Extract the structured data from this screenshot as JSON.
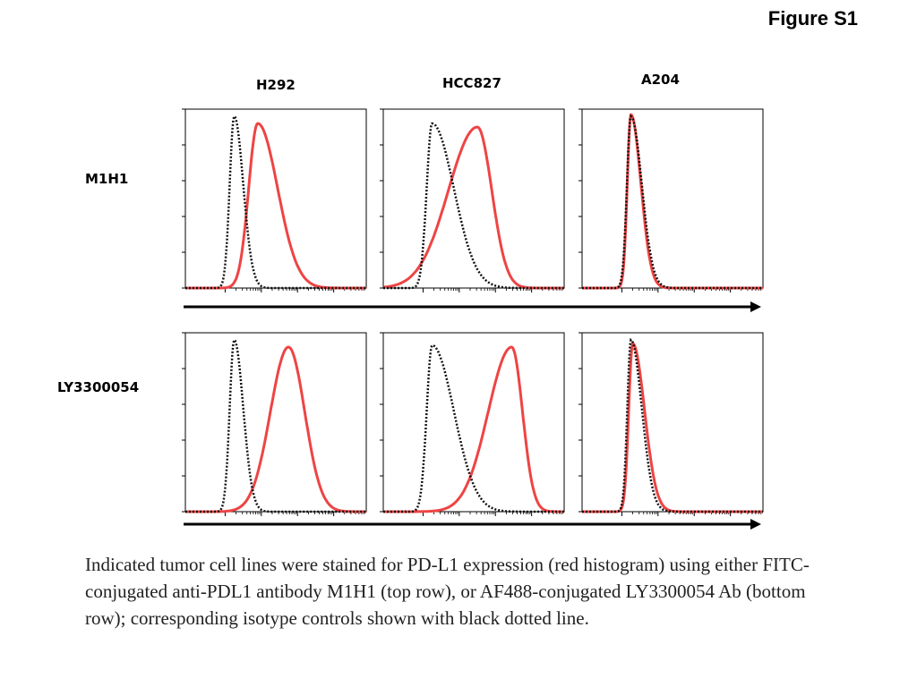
{
  "figure_title": "Figure S1",
  "caption": "Indicated tumor cell lines were stained for PD-L1 expression (red histogram) using either FITC-conjugated anti-PDL1 antibody M1H1 (top row), or AF488-conjugated LY3300054 Ab (bottom row); corresponding isotype controls shown with black dotted line.",
  "colors": {
    "stain": "#ee4444",
    "isotype": "#111111",
    "axis": "#000000"
  },
  "chart_data": {
    "type": "histogram-grid",
    "columns": [
      "H292",
      "HCC827",
      "A204"
    ],
    "rows": [
      "M1H1",
      "LY3300054"
    ],
    "x_scale": "log",
    "x_range": [
      0,
      1
    ],
    "y_range": [
      0,
      1
    ],
    "series_legend": {
      "stain": "PD-L1 expression (red histogram)",
      "isotype": "isotype controls (black dotted line)"
    },
    "panels": [
      {
        "row": "M1H1",
        "column": "H292",
        "isotype": {
          "peak_x": 0.27,
          "peak_y": 0.96,
          "sigma_left": 0.025,
          "sigma_right": 0.05
        },
        "stain": {
          "peak_x": 0.4,
          "peak_y": 0.92,
          "sigma_left": 0.05,
          "sigma_right": 0.11
        }
      },
      {
        "row": "M1H1",
        "column": "HCC827",
        "isotype": {
          "peak_x": 0.27,
          "peak_y": 0.92,
          "sigma_left": 0.03,
          "sigma_right": 0.12
        },
        "stain": {
          "peak_x": 0.52,
          "peak_y": 0.9,
          "sigma_left": 0.16,
          "sigma_right": 0.08
        }
      },
      {
        "row": "M1H1",
        "column": "A204",
        "isotype": {
          "peak_x": 0.27,
          "peak_y": 0.96,
          "sigma_left": 0.022,
          "sigma_right": 0.06
        },
        "stain": {
          "peak_x": 0.27,
          "peak_y": 0.97,
          "sigma_left": 0.02,
          "sigma_right": 0.055
        }
      },
      {
        "row": "LY3300054",
        "column": "H292",
        "isotype": {
          "peak_x": 0.27,
          "peak_y": 0.96,
          "sigma_left": 0.025,
          "sigma_right": 0.05
        },
        "stain": {
          "peak_x": 0.57,
          "peak_y": 0.92,
          "sigma_left": 0.1,
          "sigma_right": 0.09
        }
      },
      {
        "row": "LY3300054",
        "column": "HCC827",
        "isotype": {
          "peak_x": 0.27,
          "peak_y": 0.93,
          "sigma_left": 0.03,
          "sigma_right": 0.12
        },
        "stain": {
          "peak_x": 0.71,
          "peak_y": 0.92,
          "sigma_left": 0.13,
          "sigma_right": 0.06
        }
      },
      {
        "row": "LY3300054",
        "column": "A204",
        "isotype": {
          "peak_x": 0.27,
          "peak_y": 0.96,
          "sigma_left": 0.02,
          "sigma_right": 0.06
        },
        "stain": {
          "peak_x": 0.28,
          "peak_y": 0.94,
          "sigma_left": 0.022,
          "sigma_right": 0.065
        }
      }
    ]
  }
}
